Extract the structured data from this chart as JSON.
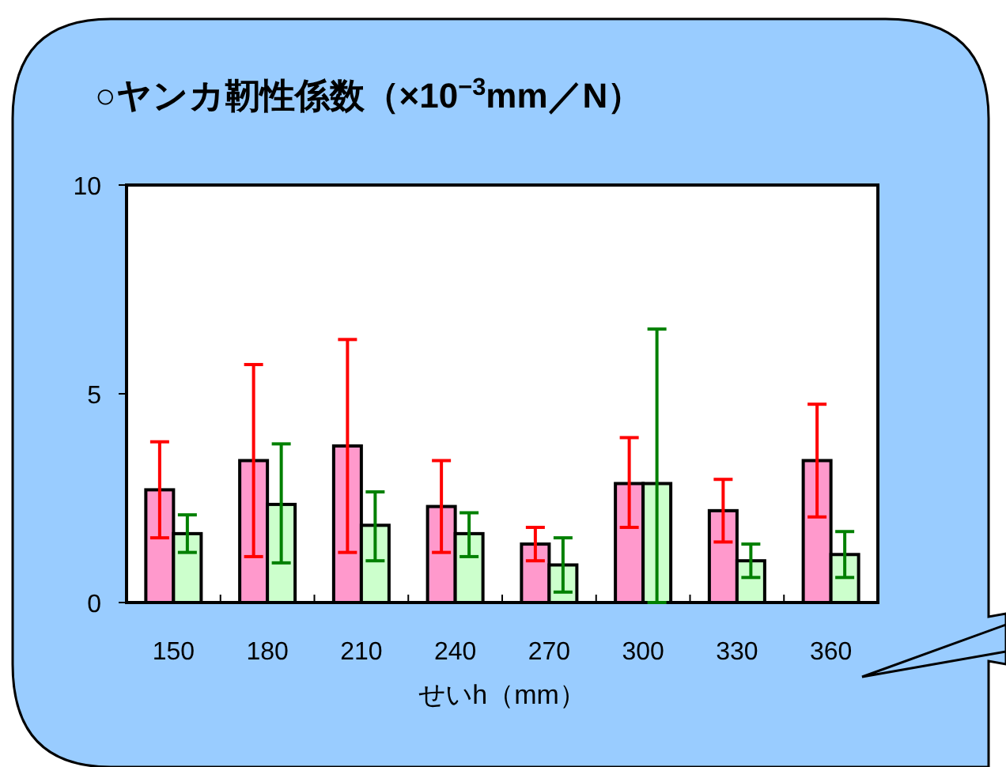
{
  "chart_data": {
    "type": "bar",
    "title": "○ヤンカ靭性係数（×10$^{−3}$mm／N）",
    "xlabel": "せいh（mm）",
    "categories": [
      "150",
      "180",
      "210",
      "240",
      "270",
      "300",
      "330",
      "360"
    ],
    "ylim": [
      0,
      10
    ],
    "yticks": [
      0,
      5,
      10
    ],
    "grid": false,
    "series": [
      {
        "color": "#ff99cc",
        "values": [
          2.7,
          3.4,
          3.75,
          2.3,
          1.4,
          2.85,
          2.2,
          3.4
        ],
        "errors": [
          [
            1.55,
            3.85
          ],
          [
            1.1,
            5.7
          ],
          [
            1.2,
            6.3
          ],
          [
            1.2,
            3.4
          ],
          [
            1.0,
            1.8
          ],
          [
            1.8,
            3.95
          ],
          [
            1.45,
            2.95
          ],
          [
            2.05,
            4.75
          ]
        ]
      },
      {
        "color": "#ccffcc",
        "values": [
          1.65,
          2.35,
          1.85,
          1.65,
          0.9,
          2.85,
          1.0,
          1.15
        ],
        "errors": [
          [
            1.2,
            2.1
          ],
          [
            0.95,
            3.8
          ],
          [
            1.0,
            2.65
          ],
          [
            1.1,
            2.15
          ],
          [
            0.25,
            1.55
          ],
          [
            0.0,
            6.55
          ],
          [
            0.6,
            1.4
          ],
          [
            0.6,
            1.7
          ]
        ]
      }
    ]
  }
}
